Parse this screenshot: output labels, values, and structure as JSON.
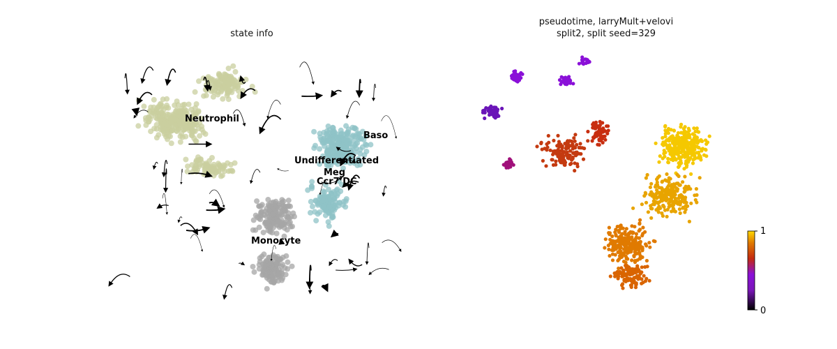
{
  "chart_data": [
    {
      "type": "scatter",
      "title": "state info",
      "overlay": "velocity stream lines with arrows",
      "axes": "off",
      "categories": [
        {
          "name": "Neutrophil",
          "color": "#c9cf9f"
        },
        {
          "name": "Baso",
          "color": "#8fc3c7"
        },
        {
          "name": "Undifferentiated",
          "color": "#8fc3c7"
        },
        {
          "name": "Meg",
          "color": "#8fc3c7"
        },
        {
          "name": "Ccr7 DC",
          "color": "#8fc3c7"
        },
        {
          "name": "Monocyte",
          "color": "#a6a6a6"
        }
      ]
    },
    {
      "type": "scatter",
      "title_line1": "pseudotime, larryMult+velovi",
      "title_line2": "split2, split seed=329",
      "axes": "off",
      "color_scale": "gnuplot",
      "colorbar": {
        "min": 0,
        "max": 1,
        "tick_labels": [
          "0",
          "1"
        ]
      }
    }
  ]
}
